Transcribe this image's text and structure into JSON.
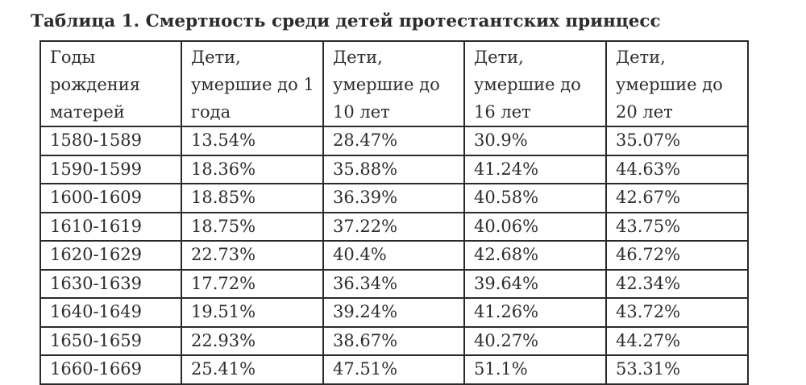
{
  "title": "Таблица 1. Смертность среди детей протестантских принцесс",
  "headers": [
    {
      "lines": [
        "Годы",
        "рождения",
        "матерей"
      ]
    },
    {
      "lines": [
        "Дети,",
        "умершие до 1",
        "года"
      ]
    },
    {
      "lines": [
        "Дети,",
        "умершие до",
        "10 лет"
      ]
    },
    {
      "lines": [
        "Дети,",
        "умершие до",
        "16 лет"
      ]
    },
    {
      "lines": [
        "Дети,",
        "умершие до",
        "20 лет"
      ]
    }
  ],
  "rows": [
    [
      "1580-1589",
      "13.54%",
      "28.47%",
      "30.9%",
      "35.07%"
    ],
    [
      "1590-1599",
      "18.36%",
      "35.88%",
      "41.24%",
      "44.63%"
    ],
    [
      "1600-1609",
      "18.85%",
      "36.39%",
      "40.58%",
      "42.67%"
    ],
    [
      "1610-1619",
      "18.75%",
      "37.22%",
      "40.06%",
      "43.75%"
    ],
    [
      "1620-1629",
      "22.73%",
      "40.4%",
      "42.68%",
      "46.72%"
    ],
    [
      "1630-1639",
      "17.72%",
      "36.34%",
      "39.64%",
      "42.34%"
    ],
    [
      "1640-1649",
      "19.51%",
      "39.24%",
      "41.26%",
      "43.72%"
    ],
    [
      "1650-1659",
      "22.93%",
      "38.67%",
      "40.27%",
      "44.27%"
    ],
    [
      "1660-1669",
      "25.41%",
      "47.51%",
      "51.1%",
      "53.31%"
    ]
  ]
}
